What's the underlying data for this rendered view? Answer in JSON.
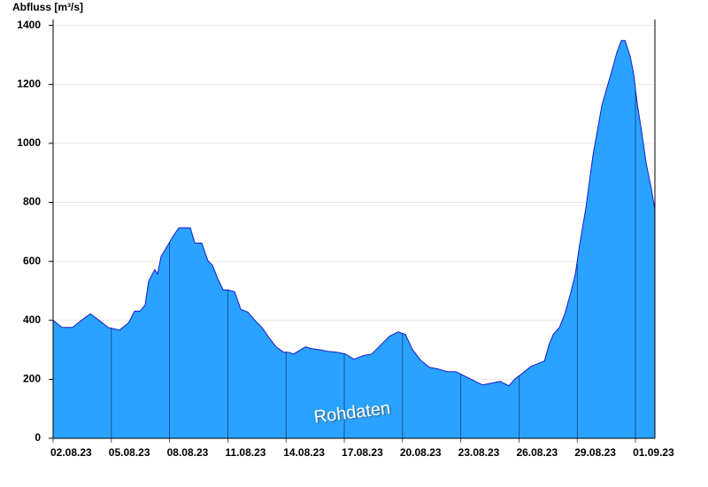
{
  "chart_data": {
    "type": "area",
    "y_label": "Abfluss [m³/s]",
    "annotation": "Rohdaten",
    "x": [
      0,
      0.46,
      1.0,
      1.46,
      1.92,
      2.37,
      2.83,
      3.42,
      3.88,
      4.2,
      4.47,
      4.74,
      4.92,
      5.24,
      5.38,
      5.56,
      5.84,
      6.16,
      6.48,
      6.75,
      7.07,
      7.3,
      7.66,
      7.98,
      8.21,
      8.48,
      8.76,
      9.03,
      9.35,
      9.67,
      10.03,
      10.4,
      10.76,
      11.17,
      11.49,
      11.86,
      12.08,
      12.4,
      12.77,
      13.0,
      13.32,
      13.68,
      14.14,
      14.59,
      15.05,
      15.5,
      15.96,
      16.42,
      16.87,
      17.33,
      17.78,
      18.15,
      18.51,
      18.97,
      19.38,
      19.84,
      20.29,
      20.75,
      21.2,
      21.66,
      22.12,
      22.57,
      23.03,
      23.48,
      23.8,
      24.17,
      24.62,
      25.08,
      25.31,
      25.54,
      25.76,
      26.08,
      26.36,
      26.68,
      26.9,
      27.13,
      27.45,
      27.82,
      28.27,
      28.73,
      29.05,
      29.27,
      29.46,
      29.73,
      29.91,
      30.1,
      30.32,
      30.55,
      30.78,
      31.0
    ],
    "series": [
      {
        "color": "#29a3ff",
        "line_color": "#1a1acc",
        "values": [
          400,
          376,
          376,
          400,
          422,
          400,
          376,
          367,
          391,
          431,
          431,
          452,
          533,
          572,
          557,
          617,
          647,
          683,
          714,
          714,
          714,
          662,
          662,
          602,
          587,
          542,
          503,
          503,
          497,
          437,
          428,
          400,
          376,
          337,
          310,
          292,
          292,
          286,
          301,
          310,
          304,
          301,
          295,
          292,
          286,
          268,
          280,
          286,
          316,
          346,
          361,
          352,
          301,
          262,
          241,
          235,
          226,
          226,
          211,
          196,
          181,
          187,
          193,
          178,
          202,
          220,
          244,
          256,
          262,
          316,
          352,
          376,
          422,
          497,
          557,
          659,
          783,
          963,
          1129,
          1234,
          1310,
          1349,
          1349,
          1295,
          1234,
          1129,
          1039,
          933,
          858,
          777
        ]
      }
    ],
    "xlim": [
      0,
      31
    ],
    "xticks": [
      {
        "value": 0,
        "label": "02.08.23"
      },
      {
        "value": 3,
        "label": "05.08.23"
      },
      {
        "value": 6,
        "label": "08.08.23"
      },
      {
        "value": 9,
        "label": "11.08.23"
      },
      {
        "value": 12,
        "label": "14.08.23"
      },
      {
        "value": 15,
        "label": "17.08.23"
      },
      {
        "value": 18,
        "label": "20.08.23"
      },
      {
        "value": 21,
        "label": "23.08.23"
      },
      {
        "value": 24,
        "label": "26.08.23"
      },
      {
        "value": 27,
        "label": "29.08.23"
      },
      {
        "value": 30,
        "label": "01.09.23"
      }
    ],
    "ylim": [
      0,
      1420
    ],
    "yticks": [
      0,
      200,
      400,
      600,
      800,
      1000,
      1200,
      1400
    ],
    "grid": true
  }
}
